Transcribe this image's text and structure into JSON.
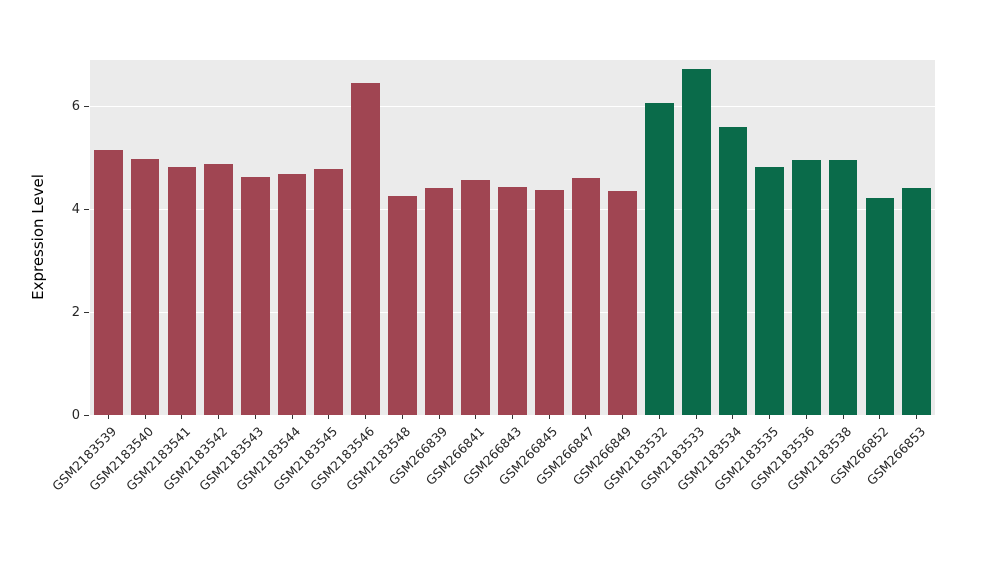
{
  "chart_data": {
    "type": "bar",
    "title": "",
    "xlabel": "",
    "ylabel": "Expression Level",
    "ylim": [
      0,
      6.9
    ],
    "yticks": [
      0,
      2,
      4,
      6
    ],
    "grid": "on",
    "legend": "none",
    "panel_background": "#ebebeb",
    "grid_color": "#ffffff",
    "group_colors": {
      "group1": "#a04552",
      "group2": "#0a6b4a"
    },
    "categories": [
      "GSM2183539",
      "GSM2183540",
      "GSM2183541",
      "GSM2183542",
      "GSM2183543",
      "GSM2183544",
      "GSM2183545",
      "GSM2183546",
      "GSM2183548",
      "GSM266839",
      "GSM266841",
      "GSM266843",
      "GSM266845",
      "GSM266847",
      "GSM266849",
      "GSM2183532",
      "GSM2183533",
      "GSM2183534",
      "GSM2183535",
      "GSM2183536",
      "GSM2183538",
      "GSM266852",
      "GSM266853"
    ],
    "values": [
      5.15,
      4.97,
      4.82,
      4.87,
      4.62,
      4.68,
      4.78,
      6.45,
      4.25,
      4.42,
      4.57,
      4.44,
      4.37,
      4.61,
      4.35,
      6.07,
      6.72,
      5.6,
      4.82,
      4.96,
      4.95,
      4.22,
      4.42
    ],
    "bar_colors": [
      "#a04552",
      "#a04552",
      "#a04552",
      "#a04552",
      "#a04552",
      "#a04552",
      "#a04552",
      "#a04552",
      "#a04552",
      "#a04552",
      "#a04552",
      "#a04552",
      "#a04552",
      "#a04552",
      "#a04552",
      "#0a6b4a",
      "#0a6b4a",
      "#0a6b4a",
      "#0a6b4a",
      "#0a6b4a",
      "#0a6b4a",
      "#0a6b4a",
      "#0a6b4a"
    ]
  }
}
